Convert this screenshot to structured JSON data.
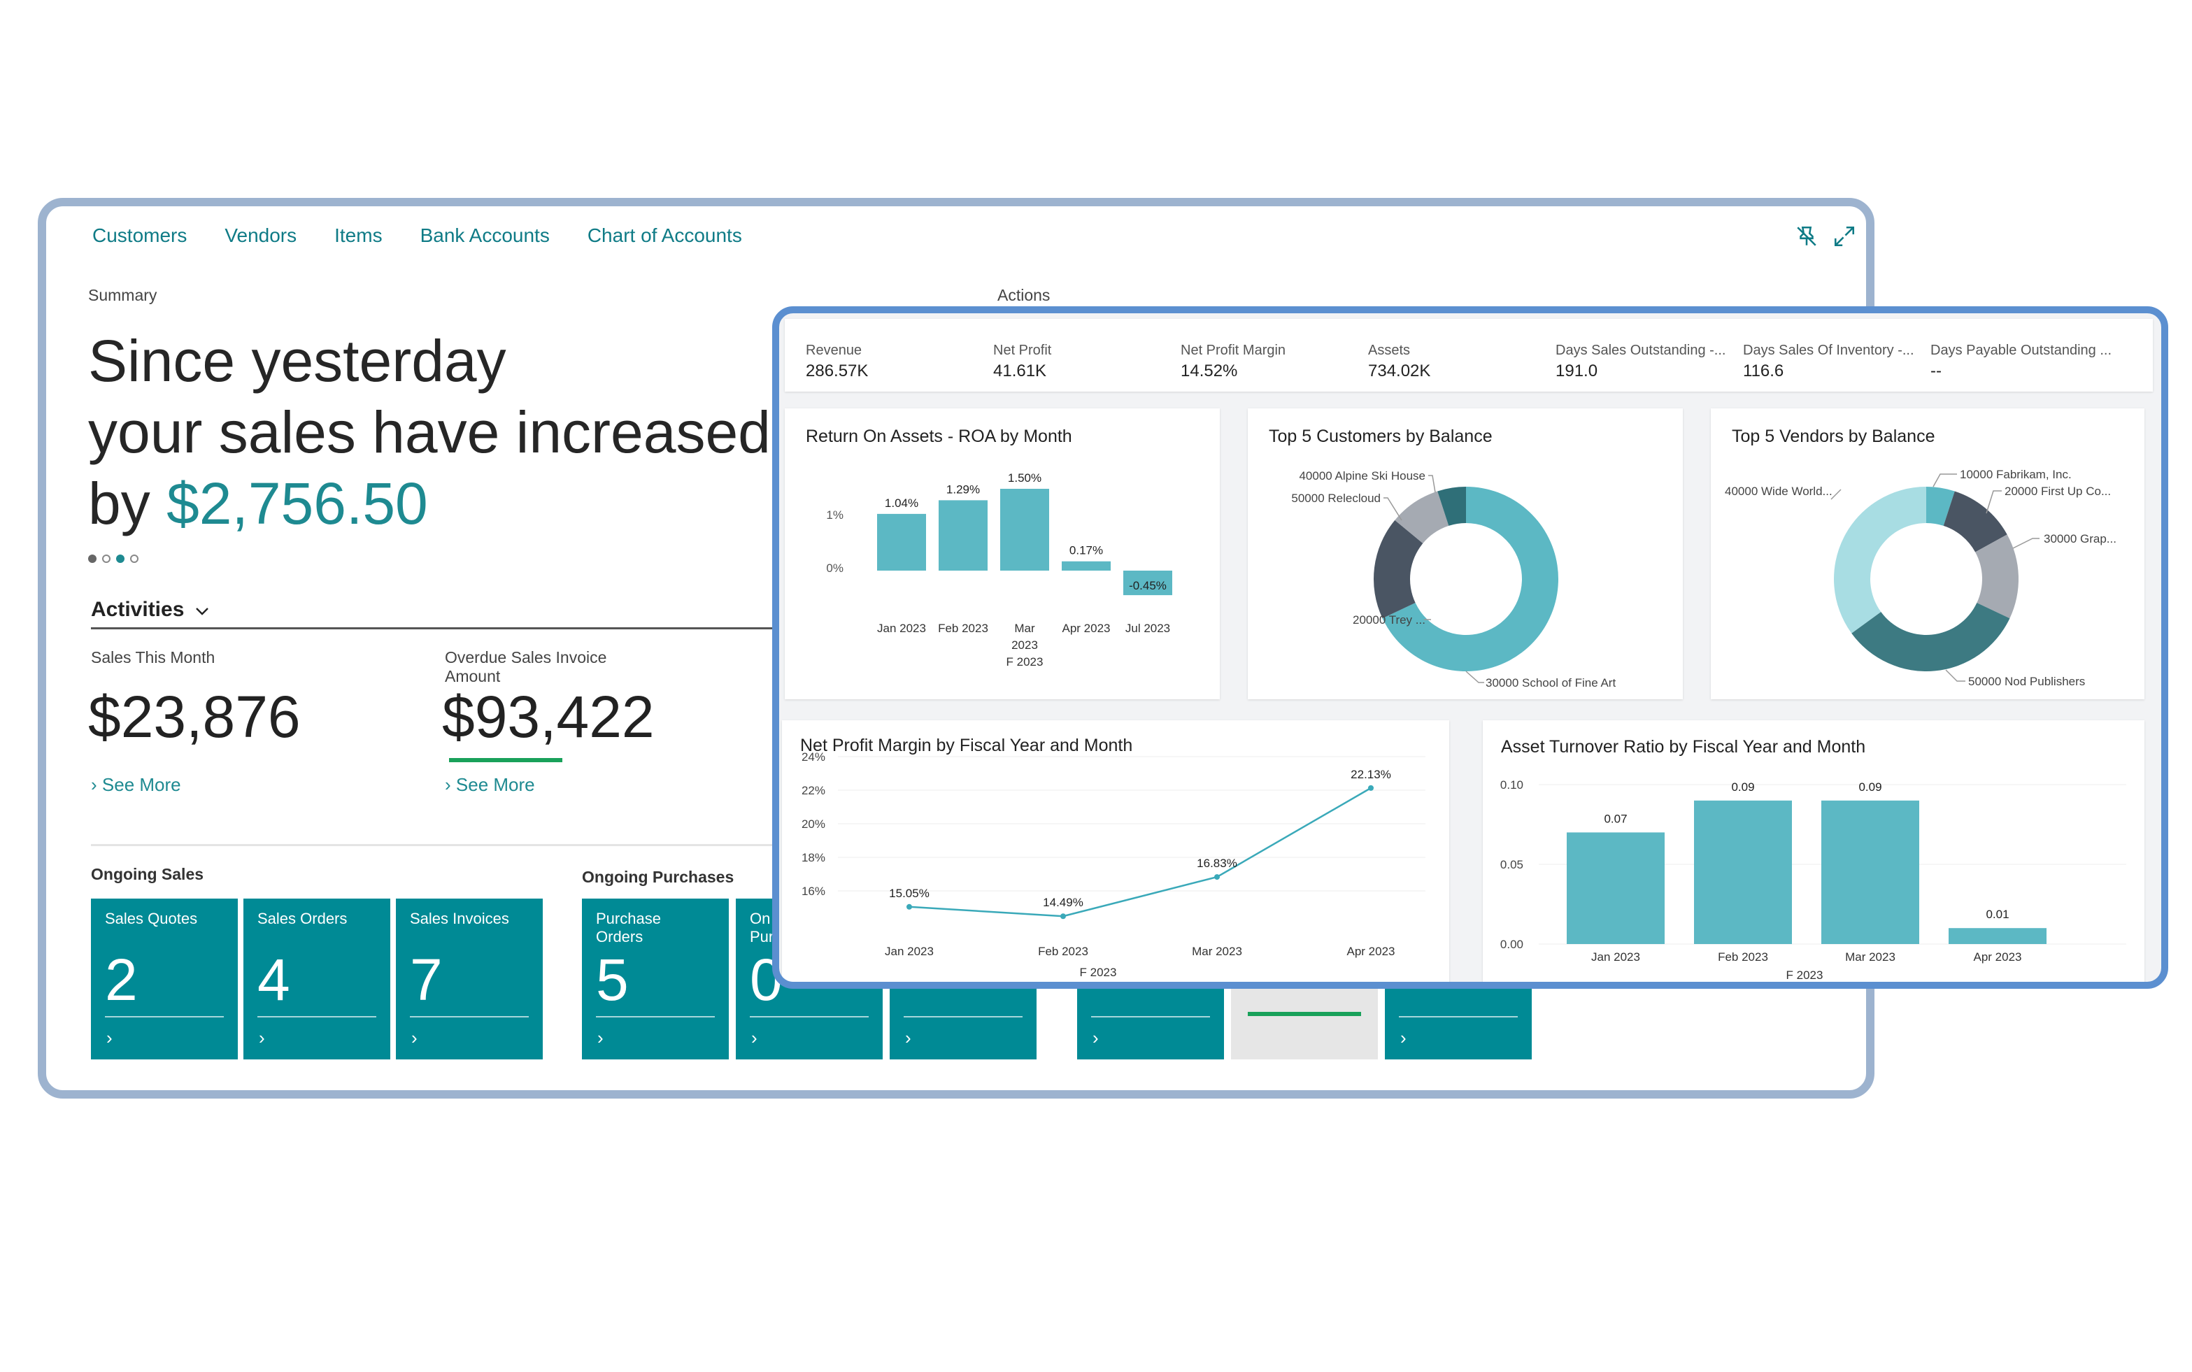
{
  "nav": {
    "items": [
      "Customers",
      "Vendors",
      "Items",
      "Bank Accounts",
      "Chart of Accounts"
    ]
  },
  "window_controls": {
    "pin_icon": "unpin-icon",
    "expand_icon": "expand-icon"
  },
  "summary": {
    "label": "Summary",
    "actions_label": "Actions",
    "headline_line1": "Since yesterday",
    "headline_line2": "your sales have increased",
    "headline_by": "by ",
    "headline_amount": "$2,756.50"
  },
  "activities": {
    "title": "Activities",
    "sales_this_month": {
      "label": "Sales This Month",
      "value": "$23,876",
      "link": "See More"
    },
    "overdue": {
      "label_line1": "Overdue Sales Invoice",
      "label_line2": "Amount",
      "value": "$93,422",
      "link": "See More"
    }
  },
  "ongoing_sales": {
    "title": "Ongoing Sales",
    "tiles": [
      {
        "label": "Sales Quotes",
        "value": "2"
      },
      {
        "label": "Sales Orders",
        "value": "4"
      },
      {
        "label": "Sales Invoices",
        "value": "7"
      }
    ]
  },
  "ongoing_purchases": {
    "title": "Ongoing Purchases",
    "tiles": [
      {
        "label_line1": "Purchase",
        "label_line2": "Orders",
        "value": "5"
      },
      {
        "label_line1": "On",
        "label_line2": "Pur",
        "value": "0"
      }
    ]
  },
  "metrics": [
    {
      "label": "Revenue",
      "value": "286.57K"
    },
    {
      "label": "Net Profit",
      "value": "41.61K"
    },
    {
      "label": "Net Profit Margin",
      "value": "14.52%"
    },
    {
      "label": "Assets",
      "value": "734.02K"
    },
    {
      "label": "Days Sales Outstanding -...",
      "value": "191.0"
    },
    {
      "label": "Days Sales Of Inventory -...",
      "value": "116.6"
    },
    {
      "label": "Days Payable Outstanding ...",
      "value": "--"
    }
  ],
  "chart_data": [
    {
      "type": "bar",
      "title": "Return On Assets - ROA by Month",
      "categories": [
        "Jan 2023",
        "Feb 2023",
        "Mar 2023",
        "Apr 2023",
        "Jul 2023"
      ],
      "values": [
        1.04,
        1.29,
        1.5,
        0.17,
        -0.45
      ],
      "value_labels": [
        "1.04%",
        "1.29%",
        "1.50%",
        "0.17%",
        "-0.45%"
      ],
      "yticks": [
        "1%",
        "0%"
      ],
      "x_group_label": "F 2023",
      "color": "#5cb8c4"
    },
    {
      "type": "pie",
      "title": "Top 5 Customers by Balance",
      "labels": [
        "30000 School of Fine Art",
        "20000 Trey ...",
        "50000 Relecloud",
        "40000 Alpine Ski House"
      ],
      "values": [
        68,
        18,
        9,
        5
      ],
      "colors": [
        "#5cb8c4",
        "#4a5563",
        "#a5aab2",
        "#2f6f78"
      ]
    },
    {
      "type": "pie",
      "title": "Top 5 Vendors by Balance",
      "labels": [
        "10000 Fabrikam, Inc.",
        "20000 First Up Co...",
        "30000 Grap...",
        "50000 Nod Publishers",
        "40000 Wide World..."
      ],
      "values": [
        5,
        12,
        15,
        33,
        35
      ],
      "colors": [
        "#5cb8c4",
        "#4a5563",
        "#a5aab2",
        "#3d7a82",
        "#a8dde3"
      ]
    },
    {
      "type": "line",
      "title": "Net Profit Margin by Fiscal Year and Month",
      "categories": [
        "Jan 2023",
        "Feb 2023",
        "Mar 2023",
        "Apr 2023"
      ],
      "values": [
        15.05,
        14.49,
        16.83,
        22.13
      ],
      "value_labels": [
        "15.05%",
        "14.49%",
        "16.83%",
        "22.13%"
      ],
      "yticks": [
        "24%",
        "22%",
        "20%",
        "18%",
        "16%"
      ],
      "ylim": [
        14,
        24
      ],
      "x_group_label": "F 2023",
      "color": "#3aa9b9"
    },
    {
      "type": "bar",
      "title": "Asset Turnover Ratio by Fiscal Year and Month",
      "categories": [
        "Jan 2023",
        "Feb 2023",
        "Mar 2023",
        "Apr 2023"
      ],
      "values": [
        0.07,
        0.09,
        0.09,
        0.01
      ],
      "value_labels": [
        "0.07",
        "0.09",
        "0.09",
        "0.01"
      ],
      "yticks": [
        "0.10",
        "0.05",
        "0.00"
      ],
      "ylim": [
        0,
        0.1
      ],
      "x_group_label": "F 2023",
      "color": "#5cb8c4"
    }
  ]
}
